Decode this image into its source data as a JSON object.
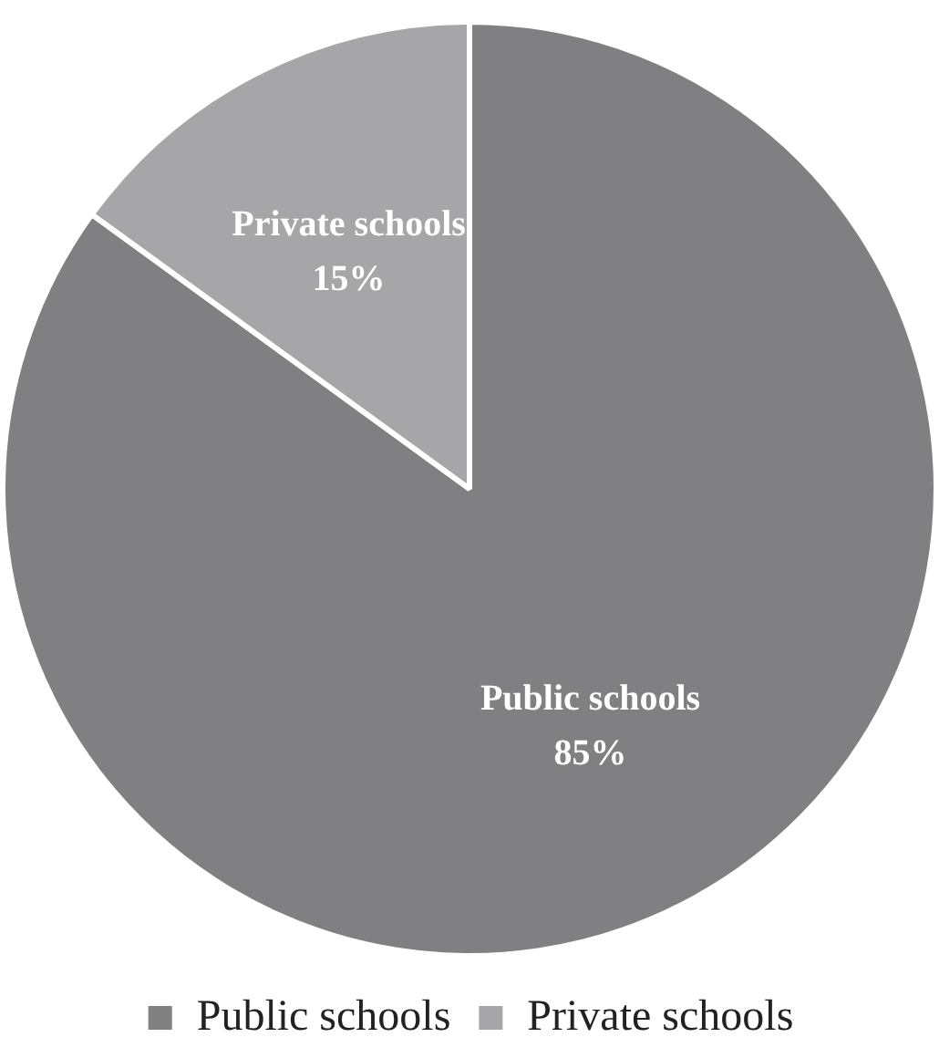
{
  "chart_data": {
    "type": "pie",
    "categories": [
      "Public schools",
      "Private schools"
    ],
    "values": [
      85,
      15
    ],
    "colors": [
      "#808083",
      "#a6a6a8"
    ],
    "value_labels": [
      "85%",
      "15%"
    ],
    "legend": "bottom"
  }
}
